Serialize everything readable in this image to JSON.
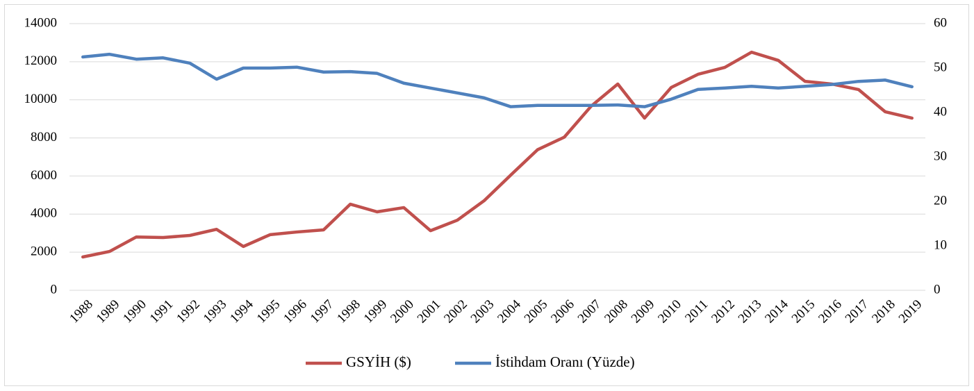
{
  "chart_data": {
    "type": "line",
    "categories": [
      "1988",
      "1989",
      "1990",
      "1991",
      "1992",
      "1993",
      "1994",
      "1995",
      "1996",
      "1997",
      "1998",
      "1999",
      "2000",
      "2001",
      "2002",
      "2003",
      "2004",
      "2005",
      "2006",
      "2007",
      "2008",
      "2009",
      "2010",
      "2011",
      "2012",
      "2013",
      "2014",
      "2015",
      "2016",
      "2017",
      "2018",
      "2019"
    ],
    "series": [
      {
        "name": "GSYİH ($)",
        "color": "#c0504d",
        "axis": "y",
        "values": [
          1750,
          2040,
          2800,
          2770,
          2880,
          3200,
          2300,
          2920,
          3060,
          3170,
          4520,
          4120,
          4340,
          3130,
          3680,
          4700,
          6050,
          7380,
          8040,
          9660,
          10830,
          9040,
          10650,
          11340,
          11700,
          12500,
          12070,
          10970,
          10830,
          10540,
          9370,
          9040
        ]
      },
      {
        "name": "İstihdam Oranı (Yüzde)",
        "color": "#4f81bd",
        "axis": "y2",
        "values": [
          52.5,
          53.1,
          52.0,
          52.3,
          51.1,
          47.5,
          50.0,
          50.0,
          50.2,
          49.1,
          49.2,
          48.8,
          46.6,
          45.5,
          44.4,
          43.3,
          41.3,
          41.6,
          41.6,
          41.6,
          41.7,
          41.3,
          43.0,
          45.2,
          45.5,
          45.9,
          45.5,
          45.9,
          46.3,
          47.0,
          47.3,
          45.8
        ]
      }
    ],
    "ylim": [
      0,
      14000
    ],
    "yticks": [
      0,
      2000,
      4000,
      6000,
      8000,
      10000,
      12000,
      14000
    ],
    "y2lim": [
      0,
      60
    ],
    "y2ticks": [
      0,
      10,
      20,
      30,
      40,
      50,
      60
    ],
    "grid": true,
    "legend": "bottom"
  }
}
